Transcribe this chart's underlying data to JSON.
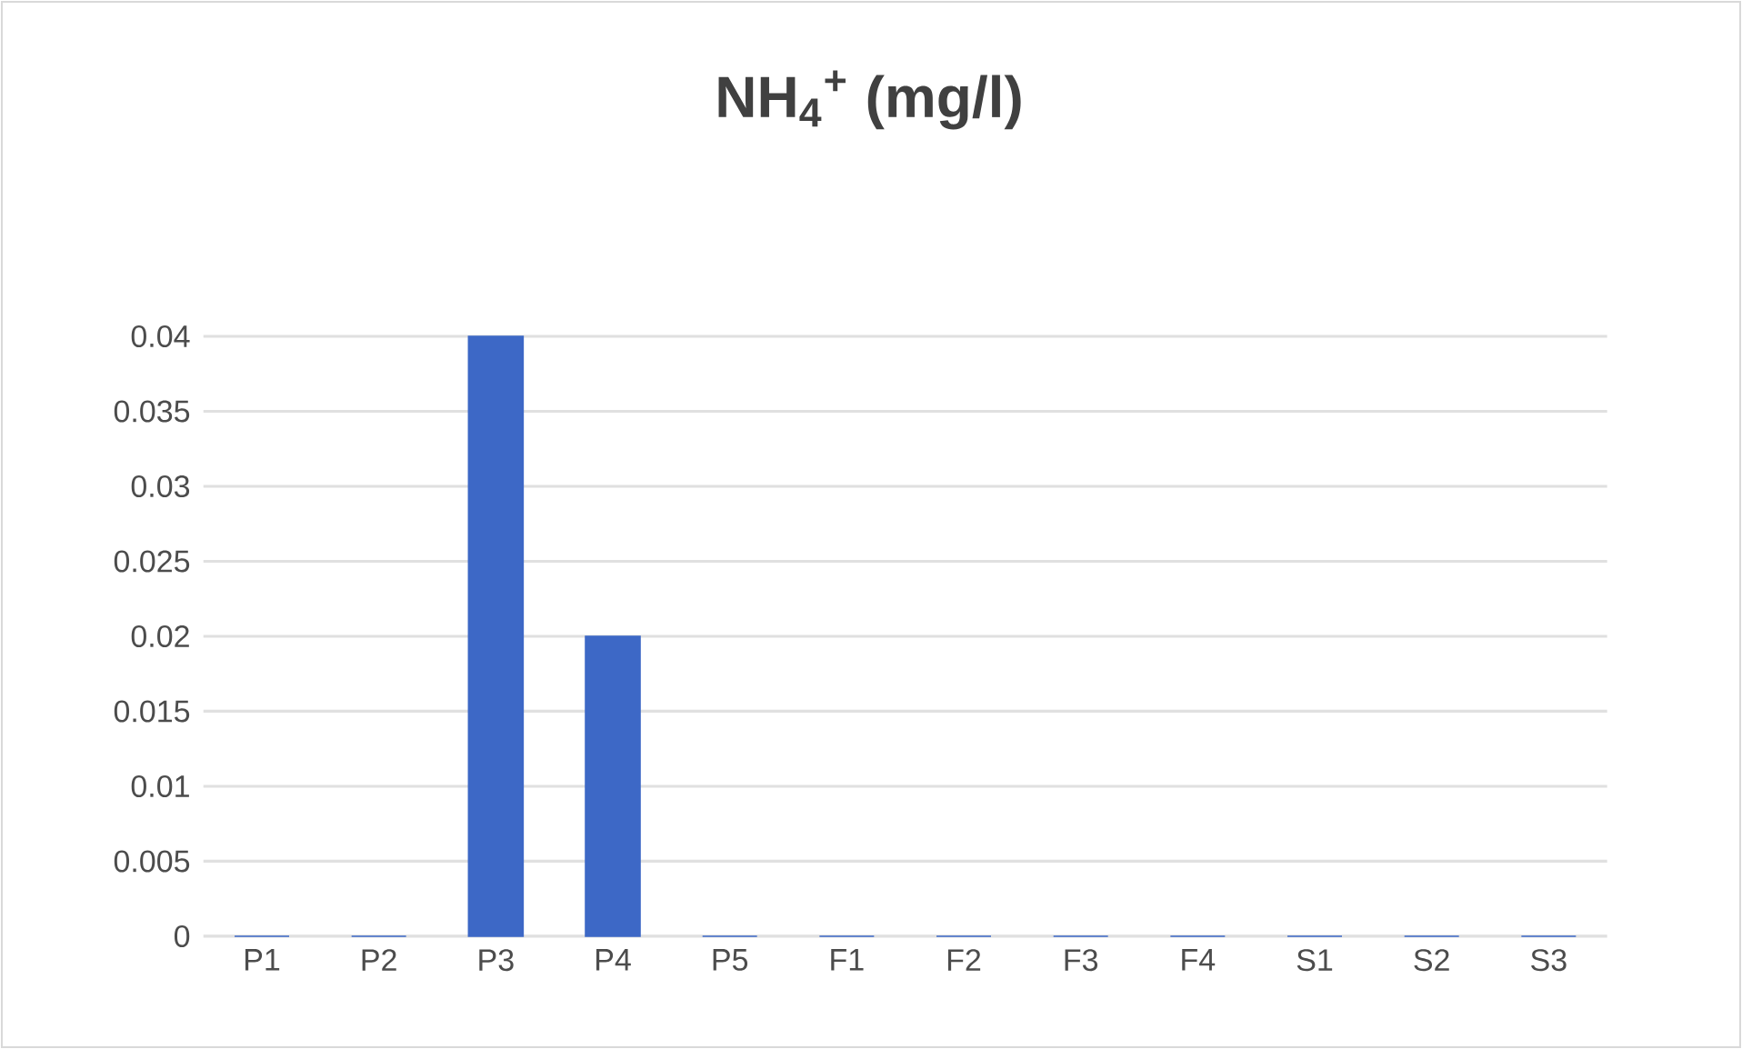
{
  "chart_data": {
    "type": "bar",
    "title": "NH$_{4}$$^{+}$ (mg/l)",
    "categories": [
      "P1",
      "P2",
      "P3",
      "P4",
      "P5",
      "F1",
      "F2",
      "F3",
      "F4",
      "S1",
      "S2",
      "S3"
    ],
    "values": [
      0,
      0,
      0.04,
      0.02,
      0,
      0,
      0,
      0,
      0,
      0,
      0,
      0
    ],
    "color": "#3d68c6",
    "ylim": [
      0,
      0.04
    ],
    "yticks": [
      0,
      0.005,
      0.01,
      0.015,
      0.02,
      0.025,
      0.03,
      0.035,
      0.04
    ],
    "grid": "y"
  }
}
